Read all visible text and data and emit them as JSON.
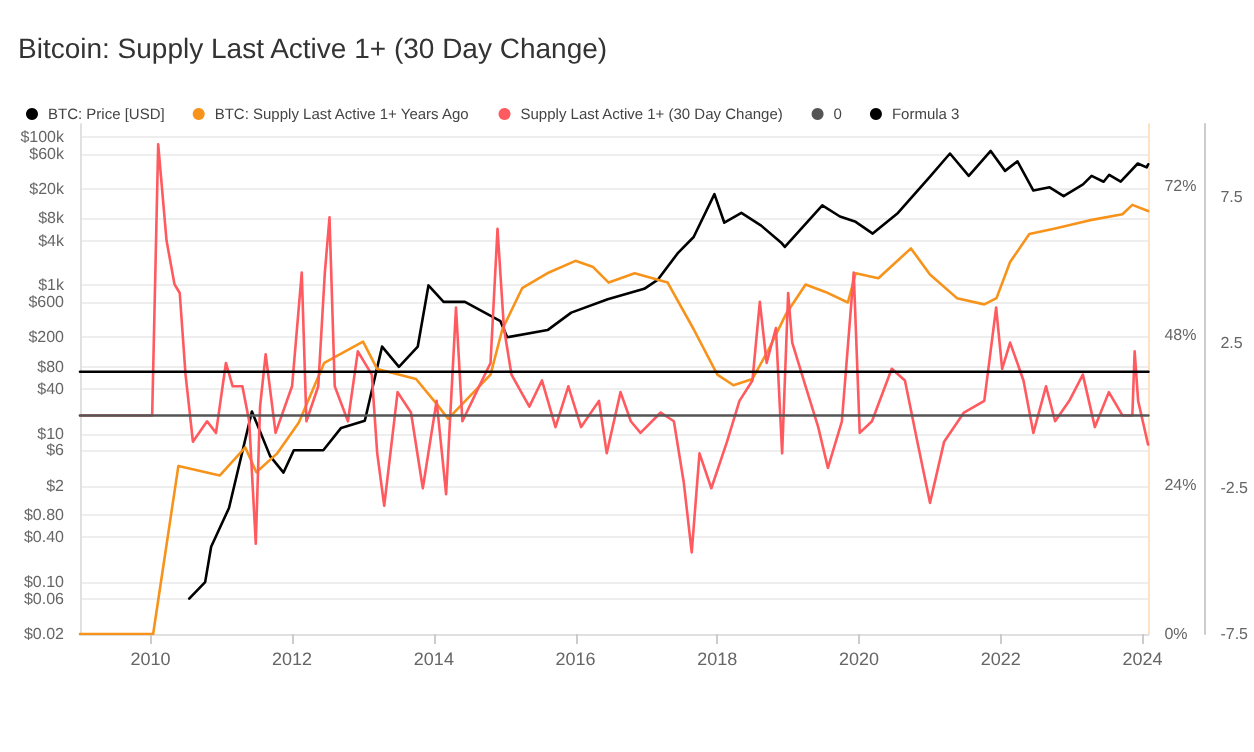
{
  "chart_data": {
    "type": "line",
    "title": "Bitcoin: Supply Last Active 1+ (30 Day Change)",
    "xlim": [
      "2009-01-03",
      "2024-02-01"
    ],
    "xticks": [
      "2010",
      "2012",
      "2014",
      "2016",
      "2018",
      "2020",
      "2022",
      "2024"
    ],
    "ylim": [
      0.02,
      150000
    ],
    "yticks": [
      {
        "value": 0.02,
        "label": "$0.02"
      },
      {
        "value": 0.06,
        "label": "$0.06"
      },
      {
        "value": 0.1,
        "label": "$0.10"
      },
      {
        "value": 0.4,
        "label": "$0.40"
      },
      {
        "value": 0.8,
        "label": "$0.80"
      },
      {
        "value": 2,
        "label": "$2"
      },
      {
        "value": 6,
        "label": "$6"
      },
      {
        "value": 10,
        "label": "$10"
      },
      {
        "value": 40,
        "label": "$40"
      },
      {
        "value": 80,
        "label": "$80"
      },
      {
        "value": 200,
        "label": "$200"
      },
      {
        "value": 600,
        "label": "$600"
      },
      {
        "value": 1000,
        "label": "$1k"
      },
      {
        "value": 4000,
        "label": "$4k"
      },
      {
        "value": 8000,
        "label": "$8k"
      },
      {
        "value": 20000,
        "label": "$20k"
      },
      {
        "value": 60000,
        "label": "$60k"
      },
      {
        "value": 100000,
        "label": "$100k"
      }
    ],
    "y2lim": [
      0,
      82
    ],
    "y2ticks": [
      {
        "value": 0,
        "label": "0%"
      },
      {
        "value": 24,
        "label": "24%"
      },
      {
        "value": 48,
        "label": "48%"
      },
      {
        "value": 72,
        "label": "72%"
      }
    ],
    "y3lim": [
      -7.5,
      10
    ],
    "y3ticks": [
      -7.5,
      -2.5,
      2.5,
      7.5
    ],
    "log": "y",
    "grid": "y",
    "legend": "top left",
    "marker": "none",
    "series": [
      {
        "name": "BTC: Price [USD]",
        "color": "#000000",
        "x": [
          "2010-07-20",
          "2010-10-10",
          "2010-11-10",
          "2011-02-10",
          "2011-06-08",
          "2011-09-10",
          "2011-11-18",
          "2012-01-10",
          "2012-06-10",
          "2012-09-10",
          "2013-01-10",
          "2013-04-09",
          "2013-07-05",
          "2013-10-10",
          "2013-12-04",
          "2014-02-20",
          "2014-06-10",
          "2014-12-10",
          "2015-01-14",
          "2015-08-10",
          "2015-12-10",
          "2016-06-15",
          "2016-12-20",
          "2017-03-01",
          "2017-06-10",
          "2017-09-01",
          "2017-12-17",
          "2018-02-06",
          "2018-05-05",
          "2018-08-15",
          "2018-11-25",
          "2018-12-15",
          "2019-06-26",
          "2019-09-25",
          "2019-12-15",
          "2020-03-12",
          "2020-07-20",
          "2020-12-31",
          "2021-04-14",
          "2021-07-20",
          "2021-11-10",
          "2022-01-23",
          "2022-03-28",
          "2022-06-18",
          "2022-09-10",
          "2022-11-21",
          "2023-03-01",
          "2023-04-14",
          "2023-06-15",
          "2023-07-14",
          "2023-09-11",
          "2023-12-08",
          "2024-01-23",
          "2024-01-31"
        ],
        "values": [
          0.06,
          0.1,
          0.3,
          1,
          20,
          5,
          3,
          6,
          6,
          12,
          15,
          150,
          80,
          150,
          1000,
          600,
          600,
          330,
          200,
          250,
          430,
          650,
          900,
          1200,
          2700,
          4500,
          17000,
          7000,
          9500,
          6400,
          3800,
          3300,
          12000,
          8500,
          7200,
          5000,
          9500,
          29000,
          60000,
          30000,
          65000,
          35000,
          47000,
          19000,
          21000,
          16000,
          23000,
          30000,
          25000,
          31000,
          25000,
          44000,
          39000,
          43000
        ]
      },
      {
        "name": "BTC: Supply Last Active 1+ Years Ago",
        "color": "#f7931a",
        "axis": "y2",
        "x": [
          "2009-01-03",
          "2010-01-15",
          "2010-05-25",
          "2010-12-25",
          "2011-05-05",
          "2011-07-01",
          "2011-10-15",
          "2012-02-05",
          "2012-06-15",
          "2013-01-01",
          "2013-03-15",
          "2013-10-01",
          "2014-01-15",
          "2014-03-15",
          "2014-10-20",
          "2014-12-20",
          "2015-04-01",
          "2015-08-08",
          "2016-01-01",
          "2016-04-01",
          "2016-06-20",
          "2016-11-01",
          "2017-04-20",
          "2017-09-01",
          "2018-01-01",
          "2018-03-25",
          "2018-07-01",
          "2018-09-25",
          "2018-12-20",
          "2019-04-01",
          "2019-07-12",
          "2019-11-05",
          "2019-12-15",
          "2020-04-10",
          "2020-09-25",
          "2021-01-01",
          "2021-05-20",
          "2021-10-08",
          "2021-12-10",
          "2022-02-18",
          "2022-05-28",
          "2022-10-08",
          "2023-04-01",
          "2023-09-20",
          "2023-11-10",
          "2024-01-30"
        ],
        "values": [
          0,
          0,
          27,
          25.5,
          30,
          26,
          29,
          34,
          43.6,
          47,
          42.6,
          41,
          37,
          34.6,
          41.7,
          49,
          55.6,
          58,
          60,
          59,
          56.5,
          58,
          56.5,
          49,
          41.7,
          40,
          41,
          45.9,
          51.4,
          56.2,
          55,
          53.3,
          58,
          57.2,
          62,
          57.8,
          54,
          53,
          54,
          59.8,
          64.3,
          65.2,
          66.5,
          67.5,
          69,
          68
        ]
      },
      {
        "name": "Supply Last Active 1+ (30 Day Change)",
        "color": "#ff5a5f",
        "axis": "y3",
        "x": [
          "2009-01-03",
          "2010-01-10",
          "2010-02-10",
          "2010-03-25",
          "2010-05-05",
          "2010-06-01",
          "2010-07-01",
          "2010-08-08",
          "2010-10-20",
          "2010-12-05",
          "2011-01-25",
          "2011-03-01",
          "2011-04-20",
          "2011-05-25",
          "2011-06-28",
          "2011-07-20",
          "2011-08-18",
          "2011-10-08",
          "2012-01-01",
          "2012-02-20",
          "2012-03-15",
          "2012-05-15",
          "2012-06-18",
          "2012-07-12",
          "2012-08-08",
          "2012-10-15",
          "2012-12-05",
          "2013-02-15",
          "2013-03-15",
          "2013-04-20",
          "2013-06-28",
          "2013-09-05",
          "2013-11-05",
          "2014-01-15",
          "2014-03-05",
          "2014-04-25",
          "2014-05-28",
          "2014-08-08",
          "2014-10-20",
          "2014-11-25",
          "2014-12-28",
          "2015-02-05",
          "2015-05-08",
          "2015-07-12",
          "2015-09-20",
          "2015-11-25",
          "2016-01-30",
          "2016-05-01",
          "2016-06-10",
          "2016-08-20",
          "2016-10-12",
          "2016-12-01",
          "2017-03-15",
          "2017-05-22",
          "2017-07-12",
          "2017-08-22",
          "2017-10-01",
          "2017-12-01",
          "2018-02-20",
          "2018-04-25",
          "2018-07-01",
          "2018-08-08",
          "2018-09-12",
          "2018-10-30",
          "2018-12-01",
          "2019-01-01",
          "2019-01-22",
          "2019-04-01",
          "2019-06-05",
          "2019-07-25",
          "2019-10-05",
          "2019-12-05",
          "2020-01-05",
          "2020-03-08",
          "2020-06-18",
          "2020-08-25",
          "2020-10-28",
          "2021-01-01",
          "2021-03-15",
          "2021-06-25",
          "2021-10-08",
          "2021-12-08",
          "2022-01-08",
          "2022-02-18",
          "2022-04-28",
          "2022-06-18",
          "2022-08-22",
          "2022-10-08",
          "2022-12-20",
          "2023-02-28",
          "2023-05-01",
          "2023-07-12",
          "2023-09-20",
          "2023-11-10",
          "2023-11-22",
          "2023-12-10",
          "2024-01-30"
        ],
        "values": [
          0,
          0,
          9.3,
          6,
          4.5,
          4.2,
          1.4,
          -0.9,
          -0.2,
          -0.6,
          1.8,
          1,
          1,
          -0.2,
          -4.4,
          0.3,
          2.1,
          -0.6,
          1,
          4.9,
          -0.2,
          1,
          4.9,
          6.8,
          1,
          -0.2,
          2.2,
          1.4,
          -1.3,
          -3.1,
          0.8,
          0.1,
          -2.5,
          0.5,
          -2.7,
          3.7,
          -0.2,
          0.8,
          1.8,
          6.4,
          3,
          1.4,
          0.3,
          1.2,
          -0.4,
          1,
          -0.4,
          0.5,
          -1.3,
          0.8,
          -0.2,
          -0.6,
          0.1,
          -0.2,
          -2.3,
          -4.7,
          -1.3,
          -2.5,
          -0.9,
          0.5,
          1.2,
          3.9,
          1.8,
          3,
          -1.3,
          4.2,
          2.5,
          1,
          -0.4,
          -1.8,
          -0.2,
          4.9,
          -0.6,
          -0.2,
          1.6,
          1.2,
          -0.9,
          -3,
          -0.9,
          0.1,
          0.5,
          3.7,
          1.6,
          2.5,
          1.2,
          -0.6,
          1,
          -0.2,
          0.5,
          1.4,
          -0.4,
          0.8,
          0,
          0,
          2.2,
          0.5,
          -1
        ]
      },
      {
        "name": "0",
        "color": "#555555",
        "axis": "y3",
        "x": [
          "2009-01-03",
          "2024-02-01"
        ],
        "values": [
          0,
          0
        ]
      },
      {
        "name": "Formula 3",
        "color": "#000000",
        "axis": "y3",
        "x": [
          "2009-01-03",
          "2024-02-01"
        ],
        "values": [
          1.5,
          1.5
        ]
      }
    ]
  }
}
